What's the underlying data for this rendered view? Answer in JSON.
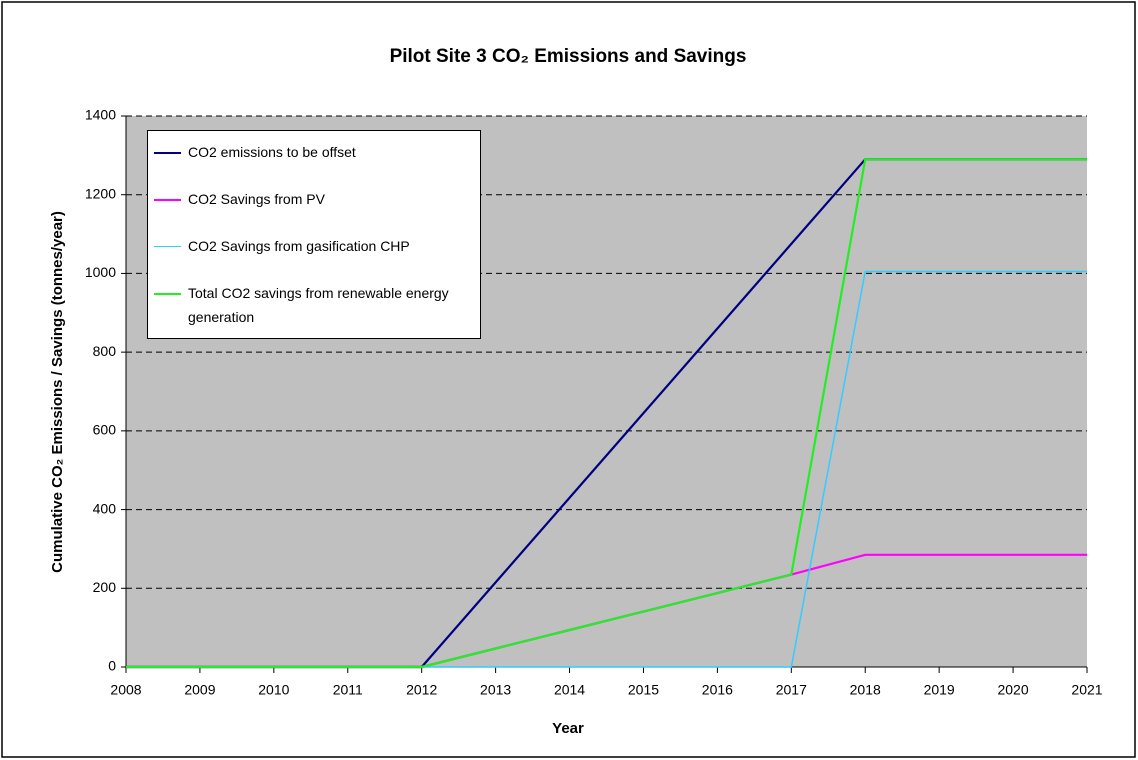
{
  "chart_data": {
    "type": "line",
    "title": "Pilot Site 3 CO₂ Emissions and Savings",
    "xlabel": "Year",
    "ylabel": "Cumulative CO₂ Emissions / Savings (tonnes/year)",
    "x": [
      2008,
      2009,
      2010,
      2011,
      2012,
      2013,
      2014,
      2015,
      2016,
      2017,
      2018,
      2019,
      2020,
      2021
    ],
    "xlim": [
      2008,
      2021
    ],
    "xticks": [
      2008,
      2009,
      2010,
      2011,
      2012,
      2013,
      2014,
      2015,
      2016,
      2017,
      2018,
      2019,
      2020,
      2021
    ],
    "ylim": [
      0,
      1400
    ],
    "yticks": [
      0,
      200,
      400,
      600,
      800,
      1000,
      1200,
      1400
    ],
    "grid": true,
    "legend": "upper left",
    "series": [
      {
        "name": "CO2 emissions to be offset",
        "color": "#000080",
        "values": [
          0,
          0,
          0,
          0,
          0,
          215,
          430,
          645,
          860,
          1075,
          1290,
          1290,
          1290,
          1290
        ]
      },
      {
        "name": "CO2 Savings from PV",
        "color": "#ff00ff",
        "values": [
          0,
          0,
          0,
          0,
          0,
          47,
          94,
          141,
          188,
          235,
          285,
          285,
          285,
          285
        ]
      },
      {
        "name": "CO2 Savings from gasification CHP",
        "color": "#33ccff",
        "values": [
          0,
          0,
          0,
          0,
          0,
          0,
          0,
          0,
          0,
          0,
          1005,
          1005,
          1005,
          1005
        ]
      },
      {
        "name": "Total CO2 savings from renewable energy generation",
        "color": "#22ee22",
        "values": [
          0,
          0,
          0,
          0,
          0,
          47,
          94,
          141,
          188,
          235,
          1290,
          1290,
          1290,
          1290
        ]
      }
    ]
  }
}
